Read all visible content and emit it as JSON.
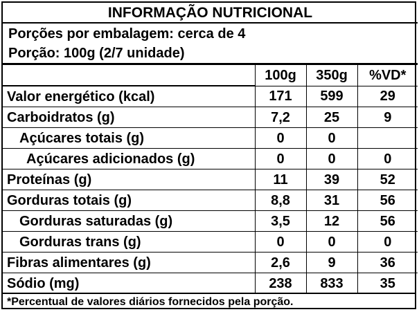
{
  "title": "INFORMAÇÃO NUTRICIONAL",
  "servings_per_package": "Porções por embalagem: cerca de 4",
  "serving_size": "Porção: 100g (2/7 unidade)",
  "table": {
    "columns": [
      "100g",
      "350g",
      "%VD*"
    ],
    "rows": [
      {
        "name": "Valor energético (kcal)",
        "v100": "171",
        "v350": "599",
        "vd": "29"
      },
      {
        "name": "Carboidratos (g)",
        "v100": "7,2",
        "v350": "25",
        "vd": "9"
      },
      {
        "name": "Açúcares totais (g)",
        "v100": "0",
        "v350": "0",
        "vd": ""
      },
      {
        "name": "Açúcares adicionados (g)",
        "v100": "0",
        "v350": "0",
        "vd": "0"
      },
      {
        "name": "Proteínas (g)",
        "v100": "11",
        "v350": "39",
        "vd": "52"
      },
      {
        "name": "Gorduras totais (g)",
        "v100": "8,8",
        "v350": "31",
        "vd": "56"
      },
      {
        "name": "Gorduras saturadas (g)",
        "v100": "3,5",
        "v350": "12",
        "vd": "56"
      },
      {
        "name": "Gorduras trans (g)",
        "v100": "0",
        "v350": "0",
        "vd": "0"
      },
      {
        "name": "Fibras alimentares (g)",
        "v100": "2,6",
        "v350": "9",
        "vd": "36"
      },
      {
        "name": "Sódio (mg)",
        "v100": "238",
        "v350": "833",
        "vd": "35"
      }
    ]
  },
  "footnote": "*Percentual de valores diários fornecidos pela porção."
}
